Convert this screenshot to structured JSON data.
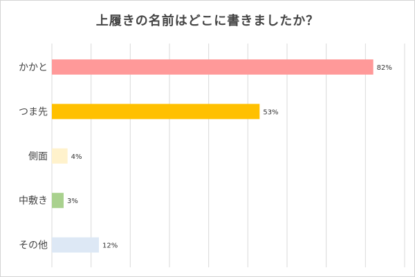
{
  "chart_data": {
    "type": "bar",
    "orientation": "horizontal",
    "title": "上履きの名前はどこに書きましたか？",
    "categories": [
      "かかと",
      "つま先",
      "側面",
      "中敷き",
      "その他"
    ],
    "values": [
      82,
      53,
      4,
      3,
      12
    ],
    "value_labels": [
      "82%",
      "53%",
      "4%",
      "3%",
      "12%"
    ],
    "colors": [
      "#ff9999",
      "#ffc000",
      "#fff2cc",
      "#a9d18e",
      "#dde8f5"
    ],
    "xlim": [
      0,
      90
    ],
    "grid": true,
    "legend": "none"
  }
}
